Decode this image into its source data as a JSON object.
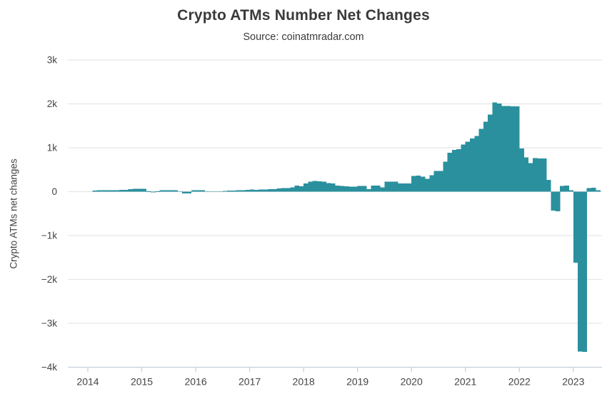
{
  "chart_data": {
    "type": "bar",
    "title": "Crypto ATMs Number Net Changes",
    "subtitle": "Source: coinatmradar.com",
    "ylabel": "Crypto ATMs net changes",
    "xlabel": "",
    "legend": "none",
    "grid": "horizontal",
    "bar_color": "#2a909e",
    "gridline_color": "#e6e6e6",
    "axis_line_color": "#c9d3dd",
    "ylim": [
      -4000,
      3000
    ],
    "y_ticks": [
      3000,
      2000,
      1000,
      0,
      -1000,
      -2000,
      -3000,
      -4000
    ],
    "y_tick_labels": [
      "3k",
      "2k",
      "1k",
      "0",
      "−1k",
      "−2k",
      "−3k",
      "−4k"
    ],
    "x_tick_labels": [
      "2014",
      "2015",
      "2016",
      "2017",
      "2018",
      "2019",
      "2020",
      "2021",
      "2022",
      "2023"
    ],
    "frequency": "monthly",
    "start_month": "2014-02",
    "end_month": "2023-06",
    "series": [
      {
        "name": "Crypto ATMs net changes",
        "values": [
          25,
          30,
          35,
          35,
          35,
          35,
          40,
          40,
          60,
          65,
          65,
          65,
          5,
          0,
          5,
          30,
          30,
          30,
          30,
          10,
          -40,
          -40,
          30,
          30,
          30,
          10,
          10,
          10,
          10,
          15,
          25,
          25,
          30,
          35,
          40,
          45,
          40,
          45,
          50,
          55,
          60,
          70,
          80,
          85,
          100,
          140,
          125,
          190,
          230,
          240,
          235,
          230,
          195,
          190,
          135,
          130,
          125,
          115,
          110,
          130,
          130,
          60,
          140,
          140,
          100,
          230,
          230,
          225,
          185,
          185,
          185,
          360,
          365,
          340,
          295,
          375,
          470,
          475,
          685,
          890,
          955,
          965,
          1070,
          1140,
          1210,
          1270,
          1430,
          1590,
          1755,
          2030,
          2010,
          1955,
          1950,
          1945,
          1940,
          985,
          780,
          650,
          765,
          760,
          755,
          265,
          -430,
          -450,
          130,
          140,
          30,
          -1620,
          -3640,
          -3650,
          80,
          90,
          30
        ]
      }
    ]
  }
}
